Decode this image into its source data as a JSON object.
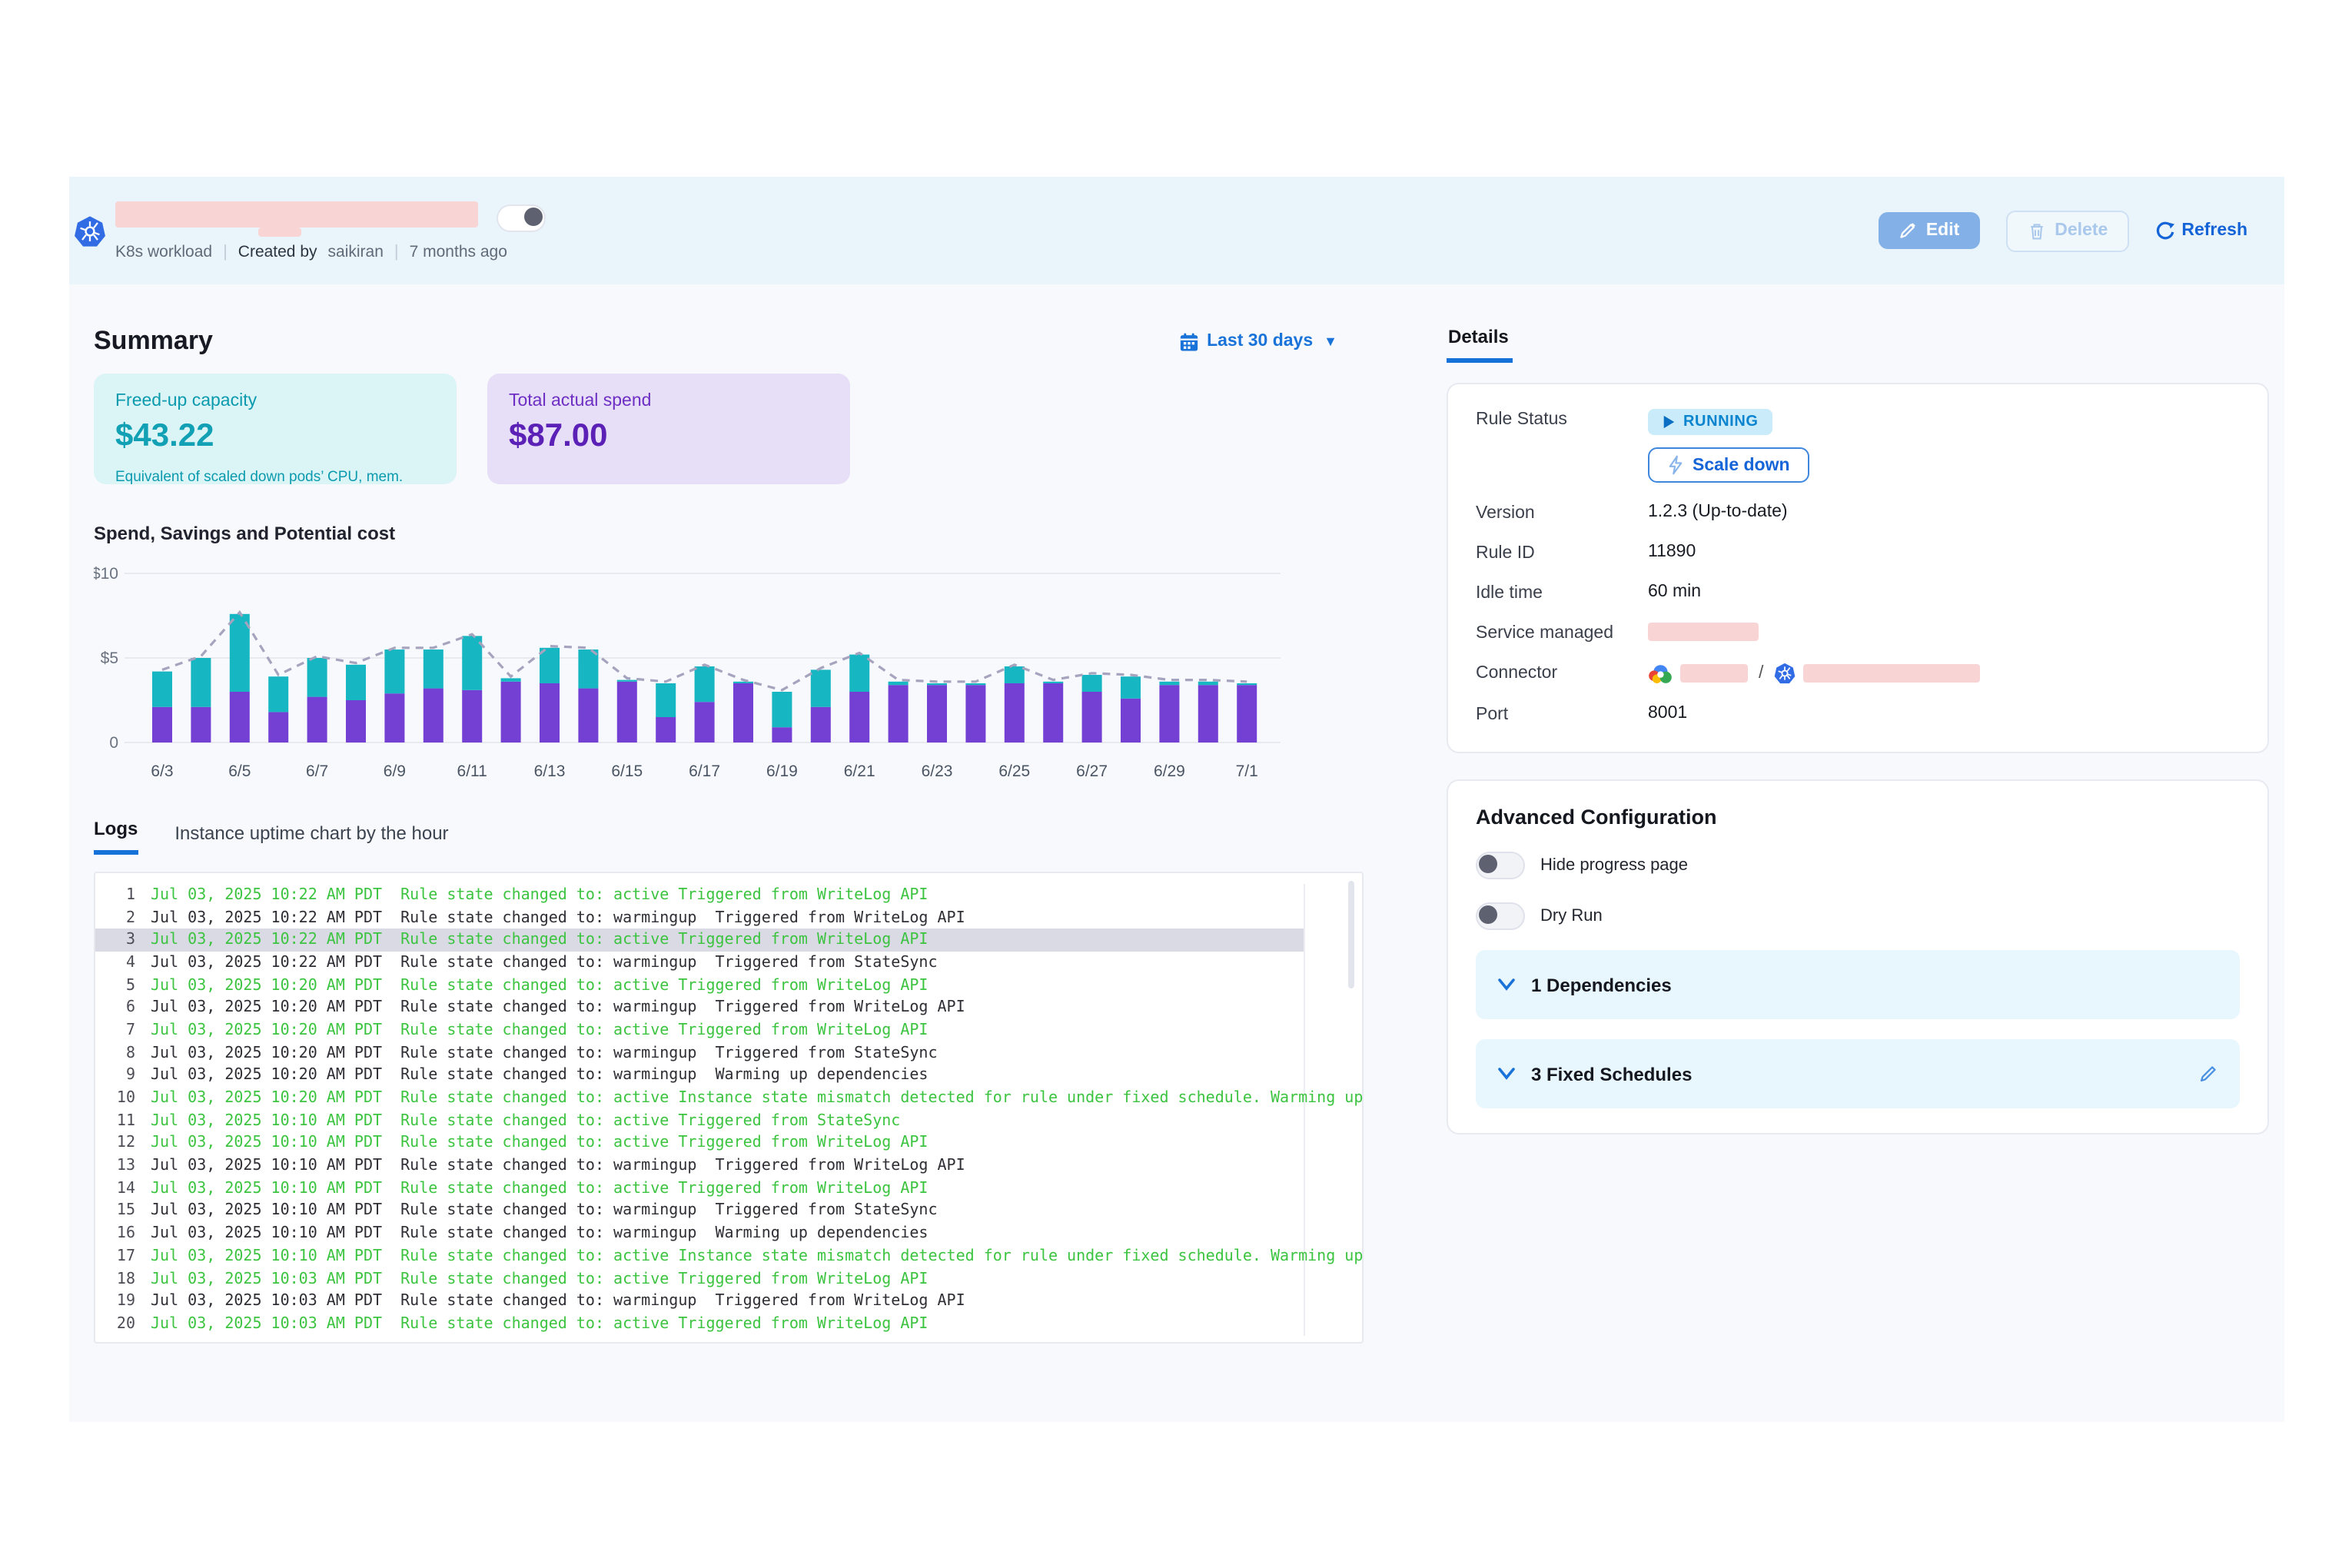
{
  "header": {
    "workload_type": "K8s workload",
    "created_by_label": "Created by",
    "created_by": "saikiran",
    "created_ago": "7 months ago",
    "edit_label": "Edit",
    "delete_label": "Delete",
    "refresh_label": "Refresh"
  },
  "summary": {
    "title": "Summary",
    "date_range": "Last 30 days",
    "cards": [
      {
        "label": "Freed-up capacity",
        "value": "$43.22",
        "caption": "Equivalent of scaled down pods’ CPU, mem."
      },
      {
        "label": "Total actual spend",
        "value": "$87.00",
        "caption": ""
      }
    ]
  },
  "chart_data": {
    "type": "bar",
    "title": "Spend, Savings and Potential cost",
    "stacked": true,
    "categories": [
      "6/3",
      "6/4",
      "6/5",
      "6/6",
      "6/7",
      "6/8",
      "6/9",
      "6/10",
      "6/11",
      "6/12",
      "6/13",
      "6/14",
      "6/15",
      "6/16",
      "6/17",
      "6/18",
      "6/19",
      "6/20",
      "6/21",
      "6/22",
      "6/23",
      "6/24",
      "6/25",
      "6/26",
      "6/27",
      "6/28",
      "6/29",
      "6/30",
      "7/1"
    ],
    "series": [
      {
        "name": "Actual spend",
        "color": "#7340d3",
        "values": [
          2.1,
          2.1,
          3.0,
          1.8,
          2.7,
          2.5,
          2.9,
          3.2,
          3.1,
          3.6,
          3.5,
          3.2,
          3.6,
          1.5,
          2.4,
          3.5,
          0.9,
          2.1,
          3.0,
          3.4,
          3.4,
          3.4,
          3.5,
          3.5,
          3.0,
          2.6,
          3.4,
          3.4,
          3.4
        ]
      },
      {
        "name": "Savings",
        "color": "#16b6c2",
        "values": [
          2.1,
          2.9,
          4.6,
          2.1,
          2.3,
          2.1,
          2.6,
          2.3,
          3.2,
          0.2,
          2.1,
          2.3,
          0.1,
          2.0,
          2.1,
          0.1,
          2.1,
          2.2,
          2.2,
          0.2,
          0.1,
          0.1,
          1.0,
          0.1,
          1.0,
          1.3,
          0.2,
          0.2,
          0.1
        ]
      }
    ],
    "line": {
      "name": "Potential cost",
      "color": "#a6a3bf",
      "dashed": true,
      "values": [
        4.3,
        5.1,
        7.7,
        4.0,
        5.1,
        4.7,
        5.6,
        5.6,
        6.4,
        3.9,
        5.7,
        5.6,
        3.8,
        3.6,
        4.6,
        3.7,
        3.1,
        4.4,
        5.3,
        3.7,
        3.6,
        3.6,
        4.6,
        3.7,
        4.1,
        4.0,
        3.7,
        3.7,
        3.6
      ]
    },
    "yticks": [
      {
        "label": "$10",
        "value": 10
      },
      {
        "label": "$5",
        "value": 5
      },
      {
        "label": "0",
        "value": 0
      }
    ],
    "ylim": [
      0,
      10
    ],
    "x_label_every": 2,
    "legend": "none",
    "grid": "horizontal"
  },
  "tabs": {
    "logs": "Logs",
    "uptime": "Instance uptime chart by the hour"
  },
  "logs": [
    {
      "n": 1,
      "time": "Jul 03, 2025 10:22 AM PDT",
      "message": "Rule state changed to: active Triggered from WriteLog API",
      "state": "active",
      "selected": false
    },
    {
      "n": 2,
      "time": "Jul 03, 2025 10:22 AM PDT",
      "message": "Rule state changed to: warmingup  Triggered from WriteLog API",
      "state": "warmingup",
      "selected": false
    },
    {
      "n": 3,
      "time": "Jul 03, 2025 10:22 AM PDT",
      "message": "Rule state changed to: active Triggered from WriteLog API",
      "state": "active",
      "selected": true
    },
    {
      "n": 4,
      "time": "Jul 03, 2025 10:22 AM PDT",
      "message": "Rule state changed to: warmingup  Triggered from StateSync",
      "state": "warmingup",
      "selected": false
    },
    {
      "n": 5,
      "time": "Jul 03, 2025 10:20 AM PDT",
      "message": "Rule state changed to: active Triggered from WriteLog API",
      "state": "active",
      "selected": false
    },
    {
      "n": 6,
      "time": "Jul 03, 2025 10:20 AM PDT",
      "message": "Rule state changed to: warmingup  Triggered from WriteLog API",
      "state": "warmingup",
      "selected": false
    },
    {
      "n": 7,
      "time": "Jul 03, 2025 10:20 AM PDT",
      "message": "Rule state changed to: active Triggered from WriteLog API",
      "state": "active",
      "selected": false
    },
    {
      "n": 8,
      "time": "Jul 03, 2025 10:20 AM PDT",
      "message": "Rule state changed to: warmingup  Triggered from StateSync",
      "state": "warmingup",
      "selected": false
    },
    {
      "n": 9,
      "time": "Jul 03, 2025 10:20 AM PDT",
      "message": "Rule state changed to: warmingup  Warming up dependencies",
      "state": "warmingup",
      "selected": false
    },
    {
      "n": 10,
      "time": "Jul 03, 2025 10:20 AM PDT",
      "message": "Rule state changed to: active Instance state mismatch detected for rule under fixed schedule. Warming up",
      "state": "active",
      "selected": false
    },
    {
      "n": 11,
      "time": "Jul 03, 2025 10:10 AM PDT",
      "message": "Rule state changed to: active Triggered from StateSync",
      "state": "active",
      "selected": false
    },
    {
      "n": 12,
      "time": "Jul 03, 2025 10:10 AM PDT",
      "message": "Rule state changed to: active Triggered from WriteLog API",
      "state": "active",
      "selected": false
    },
    {
      "n": 13,
      "time": "Jul 03, 2025 10:10 AM PDT",
      "message": "Rule state changed to: warmingup  Triggered from WriteLog API",
      "state": "warmingup",
      "selected": false
    },
    {
      "n": 14,
      "time": "Jul 03, 2025 10:10 AM PDT",
      "message": "Rule state changed to: active Triggered from WriteLog API",
      "state": "active",
      "selected": false
    },
    {
      "n": 15,
      "time": "Jul 03, 2025 10:10 AM PDT",
      "message": "Rule state changed to: warmingup  Triggered from StateSync",
      "state": "warmingup",
      "selected": false
    },
    {
      "n": 16,
      "time": "Jul 03, 2025 10:10 AM PDT",
      "message": "Rule state changed to: warmingup  Warming up dependencies",
      "state": "warmingup",
      "selected": false
    },
    {
      "n": 17,
      "time": "Jul 03, 2025 10:10 AM PDT",
      "message": "Rule state changed to: active Instance state mismatch detected for rule under fixed schedule. Warming up",
      "state": "active",
      "selected": false
    },
    {
      "n": 18,
      "time": "Jul 03, 2025 10:03 AM PDT",
      "message": "Rule state changed to: active Triggered from WriteLog API",
      "state": "active",
      "selected": false
    },
    {
      "n": 19,
      "time": "Jul 03, 2025 10:03 AM PDT",
      "message": "Rule state changed to: warmingup  Triggered from WriteLog API",
      "state": "warmingup",
      "selected": false
    },
    {
      "n": 20,
      "time": "Jul 03, 2025 10:03 AM PDT",
      "message": "Rule state changed to: active Triggered from WriteLog API",
      "state": "active",
      "selected": false
    }
  ],
  "details": {
    "tab": "Details",
    "status_badge": "RUNNING",
    "scale_down_label": "Scale down",
    "rows": [
      {
        "label": "Rule Status",
        "value": ""
      },
      {
        "label": "Version",
        "value": "1.2.3 (Up-to-date)"
      },
      {
        "label": "Rule ID",
        "value": "11890"
      },
      {
        "label": "Idle time",
        "value": "60 min"
      },
      {
        "label": "Service managed",
        "value": ""
      },
      {
        "label": "Connector",
        "value": "/"
      },
      {
        "label": "Port",
        "value": "8001"
      }
    ]
  },
  "advanced": {
    "title": "Advanced Configuration",
    "toggles": [
      {
        "label": "Hide progress page",
        "on": false
      },
      {
        "label": "Dry Run",
        "on": false
      }
    ],
    "sections": [
      {
        "label": "1 Dependencies"
      },
      {
        "label": "3 Fixed Schedules"
      }
    ]
  },
  "colors": {
    "accent_blue": "#1464d8",
    "header_band": "#e9f4fb",
    "body_bg": "#f7f9fc",
    "log_active_green": "#3cc440",
    "bar_purple": "#7340d3",
    "bar_teal": "#16b6c2",
    "line_gray": "#a6a3bf",
    "redaction_pink": "#f9d4d4",
    "selected_row": "#dadae5"
  }
}
